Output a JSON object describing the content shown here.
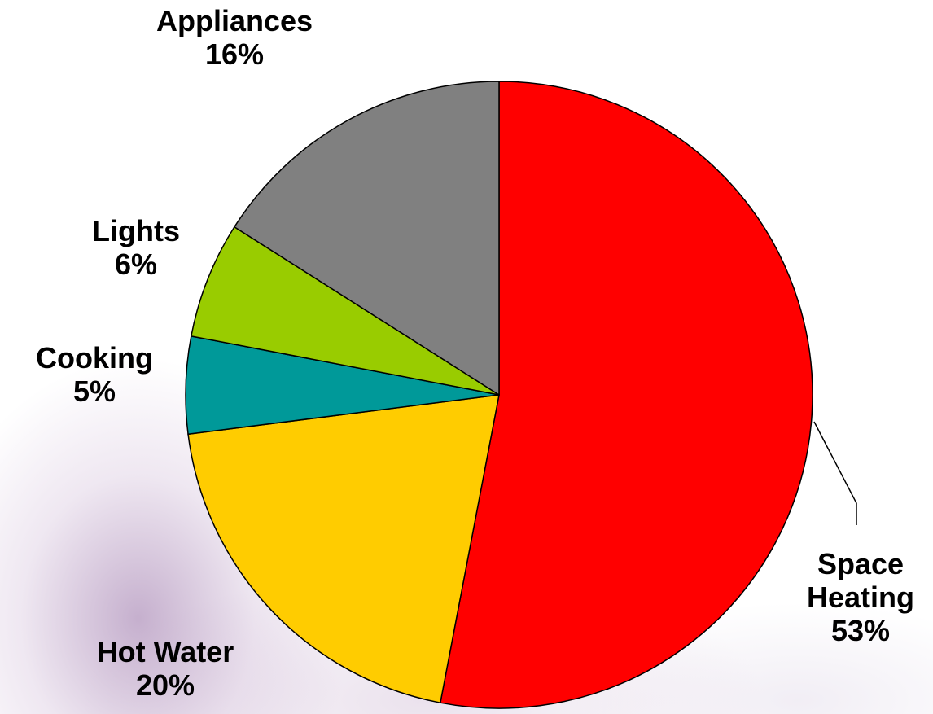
{
  "chart_data": {
    "type": "pie",
    "title": "",
    "slices": [
      {
        "label_lines": [
          "Space",
          "Heating"
        ],
        "value": 53,
        "value_label": "53%",
        "color": "#ff0000"
      },
      {
        "label_lines": [
          "Hot Water"
        ],
        "value": 20,
        "value_label": "20%",
        "color": "#ffcc00"
      },
      {
        "label_lines": [
          "Cooking"
        ],
        "value": 5,
        "value_label": "5%",
        "color": "#009999"
      },
      {
        "label_lines": [
          "Lights"
        ],
        "value": 6,
        "value_label": "6%",
        "color": "#99cc00"
      },
      {
        "label_lines": [
          "Appliances"
        ],
        "value": 16,
        "value_label": "16%",
        "color": "#808080"
      }
    ],
    "start_angle": "12 o'clock",
    "direction": "clockwise",
    "legend": "none"
  }
}
